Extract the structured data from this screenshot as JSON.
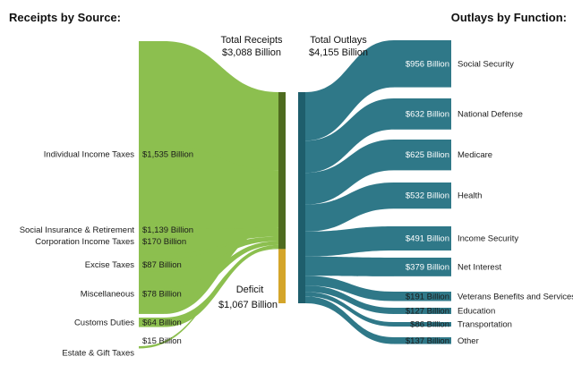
{
  "headers": {
    "receipts": "Receipts by Source:",
    "outlays": "Outlays by Function:"
  },
  "totals": {
    "receipts_title": "Total Receipts",
    "receipts_value": "$3,088 Billion",
    "outlays_title": "Total Outlays",
    "outlays_value": "$4,155 Billion",
    "deficit_title": "Deficit",
    "deficit_value": "$1,067 Billion"
  },
  "colors": {
    "receipts": "#8cbf4f",
    "receipts_bar": "#4e6b1f",
    "deficit": "#d4a52a",
    "outlays": "#2f7888",
    "outlays_bar": "#1e5e6c"
  },
  "receipts": [
    {
      "label": "Individual Income Taxes",
      "value_label": "$1,535 Billion",
      "value": 1535
    },
    {
      "label": "Social Insurance & Retirement",
      "value_label": "$1,139 Billion",
      "value": 1139
    },
    {
      "label": "Corporation Income Taxes",
      "value_label": "$170 Billion",
      "value": 170
    },
    {
      "label": "Excise Taxes",
      "value_label": "$87 Billion",
      "value": 87
    },
    {
      "label": "Miscellaneous",
      "value_label": "$78 Billion",
      "value": 78
    },
    {
      "label": "Customs Duties",
      "value_label": "$64 Billion",
      "value": 64
    },
    {
      "label": "Estate & Gift Taxes",
      "value_label": "$15 Billion",
      "value": 15
    }
  ],
  "deficit_value": 1067,
  "outlays": [
    {
      "label": "Social Security",
      "value_label": "$956 Billion",
      "value": 956
    },
    {
      "label": "National Defense",
      "value_label": "$632 Billion",
      "value": 632
    },
    {
      "label": "Medicare",
      "value_label": "$625 Billion",
      "value": 625
    },
    {
      "label": "Health",
      "value_label": "$532 Billion",
      "value": 532
    },
    {
      "label": "Income Security",
      "value_label": "$491 Billion",
      "value": 491
    },
    {
      "label": "Net Interest",
      "value_label": "$379 Billion",
      "value": 379
    },
    {
      "label": "Veterans Benefits and Services",
      "value_label": "$191 Billion",
      "value": 191
    },
    {
      "label": "Education",
      "value_label": "$127 Billion",
      "value": 127
    },
    {
      "label": "Transportation",
      "value_label": "$86 Billion",
      "value": 86
    },
    {
      "label": "Other",
      "value_label": "$137 Billion",
      "value": 137
    }
  ]
}
